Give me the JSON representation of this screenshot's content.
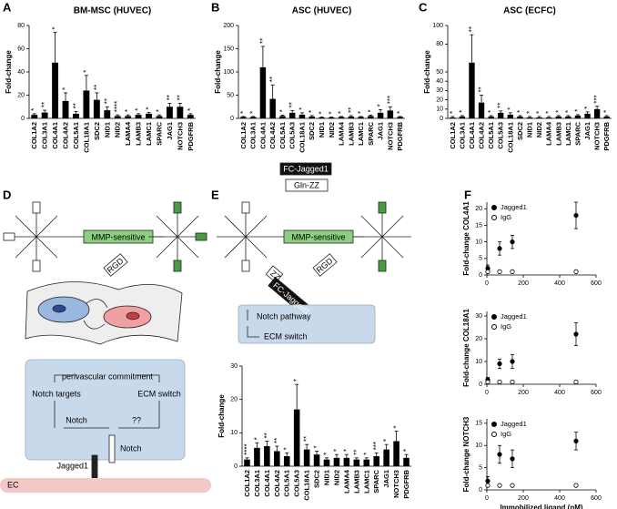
{
  "panel_labels": [
    "A",
    "B",
    "C",
    "D",
    "E",
    "F"
  ],
  "chart_data": [
    {
      "type": "bar",
      "title": "BM-MSC (HUVEC)",
      "y_label": "Fold-change",
      "color": "#000000",
      "categories": [
        "COL1A2",
        "COL3A1",
        "COL4A1",
        "COL4A2",
        "COL5A1",
        "COL18A1",
        "SDC2",
        "NID1",
        "NID2",
        "LAMA4",
        "LAMB3",
        "LAMC1",
        "SPARC",
        "JAG1",
        "NOTCH3",
        "PDGFRB"
      ],
      "values": [
        3,
        5,
        48,
        15,
        4,
        24,
        16,
        7,
        2,
        2,
        3,
        4,
        2,
        10,
        10,
        3
      ],
      "errors": [
        1,
        2,
        26,
        7,
        2,
        13,
        6,
        3,
        1,
        1,
        1,
        1,
        1,
        3,
        3,
        1
      ],
      "significance": [
        "*",
        "**",
        "*",
        "*",
        "**",
        "*",
        "**",
        "**",
        "****",
        "*",
        "*",
        "*",
        "*",
        "**",
        "**",
        "*"
      ],
      "ylim": [
        0,
        80
      ],
      "yticks": [
        0,
        20,
        40,
        60,
        80
      ]
    },
    {
      "type": "bar",
      "title": "ASC (HUVEC)",
      "y_label": "Fold-change",
      "color": "#000000",
      "categories": [
        "COL1A2",
        "COL3A1",
        "COL4A1",
        "COL4A2",
        "COL5A1",
        "COL5A3",
        "COL18A1",
        "SDC2",
        "NID1",
        "NID2",
        "LAMA4",
        "LAMB3",
        "LAMC1",
        "SPARC",
        "JAG1",
        "NOTCH3",
        "PDGFRB"
      ],
      "values": [
        3,
        3,
        110,
        42,
        5,
        12,
        8,
        4,
        2,
        2,
        3,
        4,
        3,
        5,
        12,
        17,
        3
      ],
      "errors": [
        1,
        1,
        45,
        30,
        2,
        5,
        4,
        2,
        1,
        1,
        1,
        2,
        1,
        2,
        7,
        8,
        1
      ],
      "significance": [
        "*",
        "*",
        "**",
        "**",
        "*",
        "**",
        "*",
        "*",
        "*",
        "*",
        "*",
        "**",
        "*",
        "*",
        "*",
        "***",
        "*"
      ],
      "ylim": [
        0,
        200
      ],
      "yticks": [
        0,
        50,
        100,
        150,
        200
      ]
    },
    {
      "type": "bar",
      "title": "ASC (ECFC)",
      "y_label": "Fold-change",
      "color": "#000000",
      "categories": [
        "COL1A2",
        "COL3A1",
        "COL4A1",
        "COL4A2",
        "COL5A1",
        "COL5A3",
        "COL18A1",
        "SDC2",
        "NID1",
        "NID2",
        "LAMA4",
        "LAMB3",
        "LAMC1",
        "SPARC",
        "JAG1",
        "NOTCH3",
        "PDGFRB"
      ],
      "values": [
        1,
        2,
        60,
        17,
        2,
        6,
        4,
        2,
        1,
        1,
        1,
        2,
        2,
        3,
        5,
        10,
        2
      ],
      "errors": [
        1,
        1,
        30,
        8,
        1,
        2,
        2,
        1,
        1,
        1,
        1,
        1,
        1,
        1,
        2,
        3,
        1
      ],
      "significance": [
        "*",
        "*",
        "**",
        "**",
        "*",
        "**",
        "*",
        "*",
        "*",
        "*",
        "*",
        "*",
        "*",
        "*",
        "*",
        "***",
        "*"
      ],
      "ylim": [
        0,
        100
      ],
      "yticks": [
        0,
        10,
        20,
        30,
        40,
        50,
        80,
        100
      ]
    },
    {
      "type": "bar",
      "y_label": "Fold-change",
      "color": "#000000",
      "categories": [
        "COL1A2",
        "COL3A1",
        "COL4A1",
        "COL4A2",
        "COL5A1",
        "COL5A3",
        "COL18A1",
        "SDC2",
        "NID1",
        "NID2",
        "LAMA4",
        "LAMB3",
        "LAMC1",
        "SPARC",
        "JAG1",
        "NOTCH3",
        "PDGFRB"
      ],
      "values": [
        2,
        5.5,
        6,
        4.5,
        3,
        17,
        5,
        3.5,
        2,
        2.5,
        2.5,
        2,
        2,
        3,
        5,
        7.5,
        2.5
      ],
      "errors": [
        0.5,
        1.5,
        1.5,
        1.5,
        1,
        7.5,
        1.5,
        1,
        0.5,
        1,
        1,
        0.5,
        0.5,
        1,
        1.5,
        3,
        1
      ],
      "significance": [
        "****",
        "*",
        "**",
        "**",
        "*",
        "*",
        "**",
        "*",
        "*",
        "*",
        "*",
        "**",
        "*",
        "***",
        "*",
        "*",
        "*"
      ],
      "ylim": [
        0,
        30
      ],
      "yticks": [
        0,
        10,
        20,
        30
      ]
    },
    {
      "type": "scatter",
      "y_label": "Fold-change COL4A1",
      "x": [
        5,
        70,
        140,
        490
      ],
      "series": [
        {
          "name": "Jagged1",
          "color": "#000000",
          "marker": "filled",
          "values": [
            2,
            8,
            10,
            18
          ],
          "errors": [
            1,
            2,
            2,
            4
          ]
        },
        {
          "name": "IgG",
          "color": "#000000",
          "marker": "open",
          "values": [
            1,
            1,
            1,
            1
          ]
        }
      ],
      "xlim": [
        0,
        600
      ],
      "xticks": [
        0,
        200,
        400,
        600
      ],
      "ylim": [
        0,
        22
      ],
      "yticks": [
        0,
        5,
        10,
        15,
        20
      ]
    },
    {
      "type": "scatter",
      "y_label": "Fold-change COL18A1",
      "x": [
        5,
        70,
        140,
        490
      ],
      "series": [
        {
          "name": "Jagged1",
          "color": "#000000",
          "marker": "filled",
          "values": [
            2,
            9,
            10,
            22
          ],
          "errors": [
            1,
            2,
            3,
            5
          ]
        },
        {
          "name": "IgG",
          "color": "#000000",
          "marker": "open",
          "values": [
            1,
            1,
            1,
            1
          ]
        }
      ],
      "xlim": [
        0,
        600
      ],
      "xticks": [
        0,
        200,
        400,
        600
      ],
      "ylim": [
        0,
        32
      ],
      "yticks": [
        0,
        10,
        20,
        30
      ]
    },
    {
      "type": "scatter",
      "y_label": "Fold-change NOTCH3",
      "x_label": "Immobilized ligand (nM)",
      "x": [
        5,
        70,
        140,
        490
      ],
      "series": [
        {
          "name": "Jagged1",
          "color": "#000000",
          "marker": "filled",
          "values": [
            2,
            8,
            7,
            11
          ],
          "errors": [
            1,
            2,
            2,
            2
          ]
        },
        {
          "name": "IgG",
          "color": "#000000",
          "marker": "open",
          "values": [
            1,
            1,
            1,
            1
          ]
        }
      ],
      "xlim": [
        0,
        600
      ],
      "xticks": [
        0,
        200,
        400,
        600
      ],
      "ylim": [
        0,
        16
      ],
      "yticks": [
        0,
        5,
        10,
        15
      ]
    }
  ],
  "diagram_d": {
    "linker": "MMP-sensitive",
    "peptide": "RGD",
    "box": {
      "title": "perivascular commitment",
      "left": "Notch targets",
      "right": "ECM switch",
      "arrow_left": "Notch",
      "arrow_right": "??"
    },
    "receptor": "Notch",
    "ligand": "Jagged1",
    "cell": "EC"
  },
  "diagram_e": {
    "legend_filled": "FC-Jagged1",
    "legend_open": "Gln-ZZ",
    "linker": "MMP-sensitive",
    "peptide": "RGD",
    "tether_zz": "ZZ",
    "tether_ligand": "FC-Jagged1",
    "pathway": "Notch pathway",
    "switch": "ECM switch"
  }
}
